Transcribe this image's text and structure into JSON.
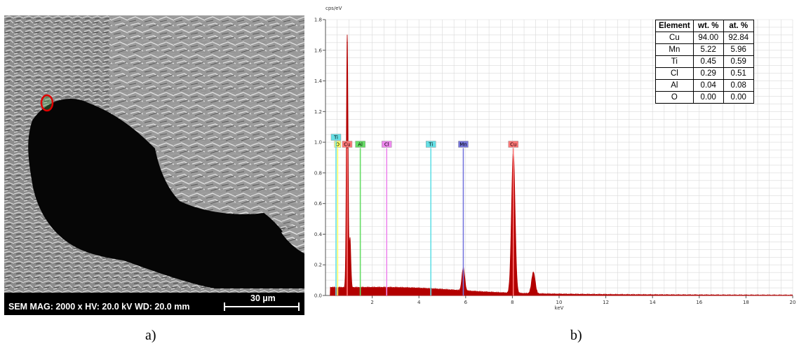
{
  "sem_panel": {
    "info_text": "SEM  MAG: 2000 x  HV: 20.0 kV  WD: 20.0 mm",
    "scale_bar_label": "30 µm",
    "panel_label": "a)"
  },
  "spectrum_panel": {
    "panel_label": "b)"
  },
  "chart_data": {
    "type": "line",
    "title": "",
    "xlabel": "keV",
    "ylabel": "cps/eV",
    "xlim": [
      0,
      20
    ],
    "ylim": [
      0,
      1.8
    ],
    "x_ticks": [
      "2",
      "4",
      "6",
      "8",
      "10",
      "12",
      "14",
      "16",
      "18",
      "20"
    ],
    "y_ticks": [
      "0.0",
      "0.2",
      "0.4",
      "0.6",
      "0.8",
      "1.0",
      "1.2",
      "1.4",
      "1.6",
      "1.8"
    ],
    "grid": true,
    "series": [
      {
        "color": "#b30000",
        "peaks": [
          {
            "x": 0.93,
            "y": 1.65
          },
          {
            "x": 1.05,
            "y": 0.32
          },
          {
            "x": 5.9,
            "y": 0.15
          },
          {
            "x": 8.04,
            "y": 0.92
          },
          {
            "x": 8.9,
            "y": 0.14
          }
        ]
      }
    ],
    "element_markers": [
      {
        "label": "O",
        "x": 0.52,
        "color": "#ffff66"
      },
      {
        "label": "Ti",
        "x": 0.45,
        "color": "#66e0e6"
      },
      {
        "label": "Cu",
        "x": 0.93,
        "color": "#ff7777"
      },
      {
        "label": "Al",
        "x": 1.49,
        "color": "#66dd66"
      },
      {
        "label": "Cl",
        "x": 2.62,
        "color": "#ee88ee"
      },
      {
        "label": "Ti",
        "x": 4.51,
        "color": "#66e0e6"
      },
      {
        "label": "Mn",
        "x": 5.9,
        "color": "#7777dd"
      },
      {
        "label": "Cu",
        "x": 8.04,
        "color": "#ff7777"
      }
    ],
    "table": {
      "headers": [
        "Element",
        "wt. %",
        "at. %"
      ],
      "rows": [
        [
          "Cu",
          "94.00",
          "92.84"
        ],
        [
          "Mn",
          "5.22",
          "5.96"
        ],
        [
          "Ti",
          "0.45",
          "0.59"
        ],
        [
          "Cl",
          "0.29",
          "0.51"
        ],
        [
          "Al",
          "0.04",
          "0.08"
        ],
        [
          "O",
          "0.00",
          "0.00"
        ]
      ]
    }
  }
}
